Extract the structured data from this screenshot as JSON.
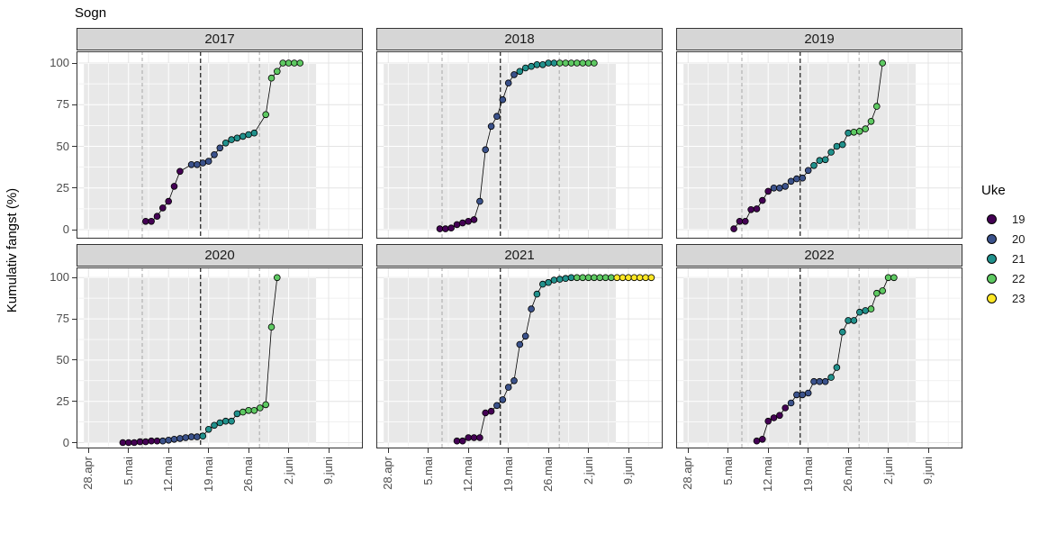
{
  "title": "Sogn",
  "y_axis": {
    "label": "Kumulativ fangst (%)",
    "tick_labels": [
      "100",
      "75",
      "50",
      "25",
      "0"
    ],
    "tick_values": [
      100,
      75,
      50,
      25,
      0
    ]
  },
  "x_axis": {
    "tick_labels": [
      "28.apr",
      "5.mai",
      "12.mai",
      "19.mai",
      "26.mai",
      "2.juni",
      "9.juni"
    ],
    "tick_day_offsets": [
      0,
      7,
      14,
      21,
      28,
      35,
      42
    ]
  },
  "legend": {
    "title": "Uke",
    "items": [
      {
        "label": "19",
        "color": "#440154"
      },
      {
        "label": "20",
        "color": "#3B528B"
      },
      {
        "label": "21",
        "color": "#21918C"
      },
      {
        "label": "22",
        "color": "#5EC962"
      },
      {
        "label": "23",
        "color": "#FDE725"
      }
    ]
  },
  "chart_data": {
    "type": "line",
    "title": "Sogn",
    "xlabel": "",
    "ylabel": "Kumulativ fangst (%)",
    "ylim": [
      0,
      100
    ],
    "grid": true,
    "legend_position": "right",
    "legend_title": "Uke",
    "week_colors": {
      "19": "#440154",
      "20": "#3B528B",
      "21": "#21918C",
      "22": "#5EC962",
      "23": "#FDE725"
    },
    "point_format": [
      "day_offset_from_28_apr",
      "cumulative_pct",
      "week"
    ],
    "shaded_region": {
      "d_start": -0.8,
      "d_end": 39.8,
      "p_start": 0,
      "p_end": 100,
      "fill": "#e8e8e8"
    },
    "reference_vlines": [
      {
        "d": 9.4,
        "color": "#a8a8a8",
        "dash": "4,3",
        "width": 1
      },
      {
        "d": 19.6,
        "color": "#1a1a1a",
        "dash": "5,3",
        "width": 1.2
      },
      {
        "d": 29.9,
        "color": "#a8a8a8",
        "dash": "4,3",
        "width": 1
      }
    ],
    "facets": [
      {
        "year": "2017",
        "points": [
          [
            10,
            5,
            19
          ],
          [
            11,
            5,
            19
          ],
          [
            12,
            8,
            19
          ],
          [
            13,
            13,
            19
          ],
          [
            14,
            17,
            19
          ],
          [
            15,
            26,
            19
          ],
          [
            16,
            35,
            19
          ],
          [
            18,
            39,
            20
          ],
          [
            19,
            39,
            20
          ],
          [
            20,
            40,
            20
          ],
          [
            21,
            41,
            20
          ],
          [
            22,
            45,
            20
          ],
          [
            23,
            49,
            20
          ],
          [
            24,
            52,
            21
          ],
          [
            25,
            54,
            21
          ],
          [
            26,
            55,
            21
          ],
          [
            27,
            56,
            21
          ],
          [
            28,
            57,
            21
          ],
          [
            29,
            58,
            21
          ],
          [
            31,
            69,
            22
          ],
          [
            32,
            91,
            22
          ],
          [
            33,
            95,
            22
          ],
          [
            34,
            100,
            22
          ],
          [
            35,
            100,
            22
          ],
          [
            36,
            100,
            22
          ],
          [
            37,
            100,
            22
          ]
        ]
      },
      {
        "year": "2018",
        "points": [
          [
            9,
            0.5,
            19
          ],
          [
            10,
            0.5,
            19
          ],
          [
            11,
            1,
            19
          ],
          [
            12,
            3,
            19
          ],
          [
            13,
            4,
            19
          ],
          [
            14,
            5,
            19
          ],
          [
            15,
            6,
            19
          ],
          [
            16,
            17,
            20
          ],
          [
            17,
            48,
            20
          ],
          [
            18,
            62,
            20
          ],
          [
            19,
            68,
            20
          ],
          [
            20,
            78,
            20
          ],
          [
            21,
            88,
            20
          ],
          [
            22,
            93,
            20
          ],
          [
            23,
            95,
            21
          ],
          [
            24,
            97,
            21
          ],
          [
            25,
            98,
            21
          ],
          [
            26,
            99,
            21
          ],
          [
            27,
            99,
            21
          ],
          [
            28,
            100,
            21
          ],
          [
            29,
            100,
            21
          ],
          [
            30,
            100,
            22
          ],
          [
            31,
            100,
            22
          ],
          [
            32,
            100,
            22
          ],
          [
            33,
            100,
            22
          ],
          [
            34,
            100,
            22
          ],
          [
            35,
            100,
            22
          ],
          [
            36,
            100,
            22
          ]
        ]
      },
      {
        "year": "2019",
        "points": [
          [
            8,
            0.5,
            19
          ],
          [
            9,
            5,
            19
          ],
          [
            10,
            5,
            19
          ],
          [
            11,
            12,
            19
          ],
          [
            12,
            12.5,
            19
          ],
          [
            13,
            17.5,
            19
          ],
          [
            14,
            23,
            19
          ],
          [
            15,
            25,
            20
          ],
          [
            16,
            25,
            20
          ],
          [
            17,
            26,
            20
          ],
          [
            18,
            29,
            20
          ],
          [
            19,
            30.5,
            20
          ],
          [
            20,
            31,
            20
          ],
          [
            21,
            35.5,
            20
          ],
          [
            22,
            38.5,
            21
          ],
          [
            23,
            41.5,
            21
          ],
          [
            24,
            42,
            21
          ],
          [
            25,
            46.5,
            21
          ],
          [
            26,
            50,
            21
          ],
          [
            27,
            51,
            21
          ],
          [
            28,
            58,
            21
          ],
          [
            29,
            58.5,
            22
          ],
          [
            30,
            59,
            22
          ],
          [
            31,
            60.5,
            22
          ],
          [
            32,
            65,
            22
          ],
          [
            33,
            74,
            22
          ],
          [
            34,
            100,
            22
          ]
        ]
      },
      {
        "year": "2020",
        "points": [
          [
            6,
            0,
            19
          ],
          [
            7,
            0,
            19
          ],
          [
            8,
            0,
            19
          ],
          [
            9,
            0.5,
            19
          ],
          [
            10,
            0.5,
            19
          ],
          [
            11,
            1,
            19
          ],
          [
            12,
            1,
            19
          ],
          [
            13,
            1,
            20
          ],
          [
            14,
            1.5,
            20
          ],
          [
            15,
            2,
            20
          ],
          [
            16,
            2.5,
            20
          ],
          [
            17,
            3,
            20
          ],
          [
            18,
            3.5,
            20
          ],
          [
            19,
            3.5,
            20
          ],
          [
            20,
            4,
            21
          ],
          [
            21,
            8,
            21
          ],
          [
            22,
            10.5,
            21
          ],
          [
            23,
            12,
            21
          ],
          [
            24,
            13,
            21
          ],
          [
            25,
            13,
            21
          ],
          [
            26,
            17.5,
            21
          ],
          [
            27,
            18.5,
            22
          ],
          [
            28,
            19.5,
            22
          ],
          [
            29,
            19.5,
            22
          ],
          [
            30,
            21,
            22
          ],
          [
            31,
            23,
            22
          ],
          [
            32,
            70,
            22
          ],
          [
            33,
            100,
            22
          ]
        ]
      },
      {
        "year": "2021",
        "points": [
          [
            12,
            1,
            19
          ],
          [
            13,
            1,
            19
          ],
          [
            14,
            3,
            19
          ],
          [
            15,
            3,
            19
          ],
          [
            16,
            3,
            19
          ],
          [
            17,
            18,
            19
          ],
          [
            18,
            19,
            19
          ],
          [
            19,
            22.5,
            20
          ],
          [
            20,
            26,
            20
          ],
          [
            21,
            33.5,
            20
          ],
          [
            22,
            37.5,
            20
          ],
          [
            23,
            59.5,
            20
          ],
          [
            24,
            64.5,
            20
          ],
          [
            25,
            81,
            20
          ],
          [
            26,
            90,
            21
          ],
          [
            27,
            96,
            21
          ],
          [
            28,
            97,
            21
          ],
          [
            29,
            98.5,
            21
          ],
          [
            30,
            99,
            21
          ],
          [
            31,
            99.5,
            21
          ],
          [
            32,
            100,
            21
          ],
          [
            33,
            100,
            22
          ],
          [
            34,
            100,
            22
          ],
          [
            35,
            100,
            22
          ],
          [
            36,
            100,
            22
          ],
          [
            37,
            100,
            22
          ],
          [
            38,
            100,
            22
          ],
          [
            39,
            100,
            22
          ],
          [
            40,
            100,
            23
          ],
          [
            41,
            100,
            23
          ],
          [
            42,
            100,
            23
          ],
          [
            43,
            100,
            23
          ],
          [
            44,
            100,
            23
          ],
          [
            45,
            100,
            23
          ],
          [
            46,
            100,
            23
          ]
        ]
      },
      {
        "year": "2022",
        "points": [
          [
            12,
            1,
            19
          ],
          [
            13,
            2,
            19
          ],
          [
            14,
            13,
            19
          ],
          [
            15,
            15,
            19
          ],
          [
            16,
            16.5,
            19
          ],
          [
            17,
            21,
            19
          ],
          [
            18,
            24,
            20
          ],
          [
            19,
            29,
            20
          ],
          [
            20,
            29,
            20
          ],
          [
            21,
            30,
            20
          ],
          [
            22,
            37,
            20
          ],
          [
            23,
            37,
            20
          ],
          [
            24,
            37,
            20
          ],
          [
            25,
            39.5,
            21
          ],
          [
            26,
            45.5,
            21
          ],
          [
            27,
            67,
            21
          ],
          [
            28,
            74,
            21
          ],
          [
            29,
            74,
            21
          ],
          [
            30,
            79,
            21
          ],
          [
            31,
            80,
            21
          ],
          [
            32,
            81,
            22
          ],
          [
            33,
            90.5,
            22
          ],
          [
            34,
            92,
            22
          ],
          [
            35,
            100,
            22
          ],
          [
            36,
            100,
            22
          ]
        ]
      }
    ]
  }
}
